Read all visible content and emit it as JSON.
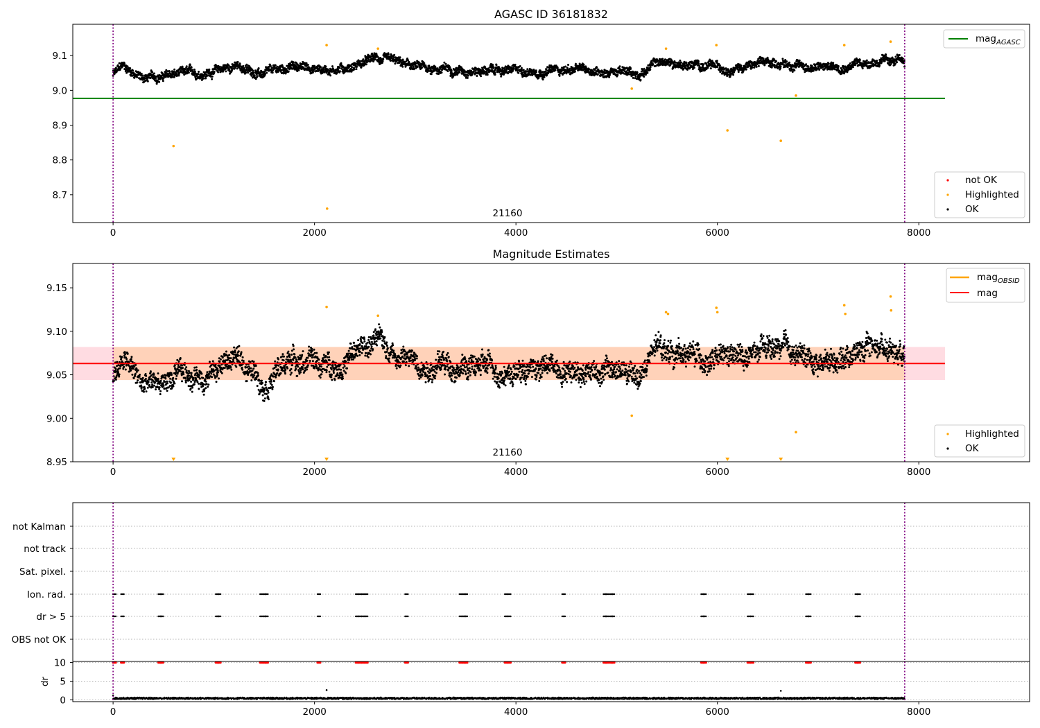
{
  "chart_data": [
    {
      "id": "panel1",
      "type": "scatter",
      "title": "AGASC ID 36181832",
      "annotation": "21160",
      "xlim": [
        -400,
        9100
      ],
      "ylim": [
        8.62,
        9.19
      ],
      "xticks": [
        "0",
        "2000",
        "4000",
        "6000",
        "8000"
      ],
      "xtick_values": [
        0,
        2000,
        4000,
        6000,
        8000
      ],
      "yticks": [
        "8.7",
        "8.8",
        "8.9",
        "9.0",
        "9.1"
      ],
      "ytick_values": [
        8.7,
        8.8,
        8.9,
        9.0,
        9.1
      ],
      "vlines": [
        0,
        7860
      ],
      "legend_top": {
        "position": "top-right",
        "entries": [
          {
            "label": "mag",
            "sub": "AGASC",
            "color": "#008000",
            "kind": "line"
          }
        ]
      },
      "legend_bottom": {
        "position": "bottom-right",
        "entries": [
          {
            "label": "not OK",
            "color": "#ff0000",
            "kind": "dot"
          },
          {
            "label": "Highlighted",
            "color": "#ffa500",
            "kind": "dot"
          },
          {
            "label": "OK",
            "color": "#000000",
            "kind": "dot"
          }
        ]
      },
      "mag_agasc": 8.977,
      "hline_x_range": [
        -400,
        8260
      ],
      "ok_series": {
        "name": "OK",
        "color": "#000000",
        "x_range": [
          0,
          7860
        ],
        "knots_x": [
          0,
          100,
          300,
          600,
          900,
          1200,
          1500,
          1800,
          2100,
          2300,
          2600,
          3000,
          3500,
          4000,
          4500,
          5000,
          5200,
          5400,
          5700,
          6000,
          6300,
          6600,
          7000,
          7300,
          7600,
          7860
        ],
        "knots_y": [
          9.045,
          9.07,
          9.035,
          9.045,
          9.05,
          9.07,
          9.045,
          9.07,
          9.06,
          9.065,
          9.09,
          9.065,
          9.06,
          9.055,
          9.06,
          9.055,
          9.045,
          9.08,
          9.075,
          9.065,
          9.07,
          9.08,
          9.065,
          9.075,
          9.085,
          9.08
        ],
        "noise": 0.02
      },
      "highlighted": {
        "name": "Highlighted",
        "color": "#ffa500",
        "points": [
          [
            600,
            8.84
          ],
          [
            2120,
            9.13
          ],
          [
            2125,
            8.66
          ],
          [
            2630,
            9.12
          ],
          [
            5150,
            9.005
          ],
          [
            5490,
            9.12
          ],
          [
            5990,
            9.13
          ],
          [
            6100,
            8.885
          ],
          [
            6630,
            8.855
          ],
          [
            6780,
            8.985
          ],
          [
            7260,
            9.13
          ],
          [
            7720,
            9.14
          ]
        ]
      }
    },
    {
      "id": "panel2",
      "type": "scatter",
      "title": "Magnitude Estimates",
      "annotation": "21160",
      "xlim": [
        -400,
        9100
      ],
      "ylim": [
        8.95,
        9.178
      ],
      "xticks": [
        "0",
        "2000",
        "4000",
        "6000",
        "8000"
      ],
      "xtick_values": [
        0,
        2000,
        4000,
        6000,
        8000
      ],
      "yticks": [
        "8.95",
        "9.00",
        "9.05",
        "9.10",
        "9.15"
      ],
      "ytick_values": [
        8.95,
        9.0,
        9.05,
        9.1,
        9.15
      ],
      "vlines": [
        0,
        7860
      ],
      "legend_top": {
        "position": "top-right",
        "entries": [
          {
            "label": "mag",
            "sub": "OBSID",
            "color": "#ffa500",
            "kind": "line"
          },
          {
            "label": "mag",
            "sub": "",
            "color": "#ff0000",
            "kind": "line"
          }
        ]
      },
      "legend_bottom": {
        "position": "bottom-right",
        "entries": [
          {
            "label": "Highlighted",
            "color": "#ffa500",
            "kind": "dot"
          },
          {
            "label": "OK",
            "color": "#000000",
            "kind": "dot"
          }
        ]
      },
      "mag": 9.063,
      "mag_band": [
        9.044,
        9.082
      ],
      "band_x_range": [
        -400,
        8260
      ],
      "ok_series": {
        "name": "OK",
        "color": "#000000",
        "x_range": [
          0,
          7860
        ],
        "knots_x": [
          0,
          100,
          300,
          600,
          900,
          1200,
          1500,
          1800,
          2100,
          2300,
          2600,
          3000,
          3500,
          4000,
          4500,
          5000,
          5200,
          5400,
          5700,
          6000,
          6300,
          6600,
          7000,
          7300,
          7600,
          7860
        ],
        "knots_y": [
          9.045,
          9.07,
          9.035,
          9.045,
          9.05,
          9.07,
          9.045,
          9.07,
          9.06,
          9.065,
          9.09,
          9.065,
          9.06,
          9.055,
          9.06,
          9.055,
          9.045,
          9.08,
          9.075,
          9.065,
          9.07,
          9.08,
          9.065,
          9.075,
          9.085,
          9.08
        ],
        "noise": 0.02
      },
      "highlighted": {
        "name": "Highlighted",
        "color": "#ffa500",
        "points": [
          [
            2120,
            9.128
          ],
          [
            2630,
            9.118
          ],
          [
            5150,
            9.003
          ],
          [
            5490,
            9.122
          ],
          [
            5510,
            9.12
          ],
          [
            5990,
            9.127
          ],
          [
            6000,
            9.122
          ],
          [
            6780,
            8.984
          ],
          [
            7260,
            9.13
          ],
          [
            7270,
            9.12
          ],
          [
            7720,
            9.14
          ],
          [
            7725,
            9.124
          ]
        ]
      },
      "below_range_markers": {
        "color": "#ffa500",
        "x": [
          600,
          2120,
          6100,
          6630
        ]
      }
    },
    {
      "id": "panel3",
      "type": "scatter",
      "categories": [
        "not Kalman",
        "not track",
        "Sat. pixel.",
        "Ion. rad.",
        "dr > 5",
        "OBS not OK"
      ],
      "flag_rows": [
        "Ion. rad.",
        "dr > 5"
      ],
      "event_x": [
        0,
        80,
        450,
        470,
        1020,
        1040,
        1460,
        1490,
        1510,
        2030,
        2410,
        2440,
        2470,
        2500,
        2900,
        3440,
        3470,
        3490,
        3890,
        3920,
        4460,
        4870,
        4890,
        4930,
        4950,
        5840,
        5860,
        6300,
        6330,
        6880,
        6900,
        7370,
        7390
      ],
      "xlim": [
        -400,
        9100
      ],
      "vlines": [
        0,
        7860
      ],
      "dr_axis": {
        "ylabel": "dr",
        "ylim": [
          -0.5,
          10.3
        ],
        "yticks": [
          "10",
          "5",
          "0"
        ],
        "ytick_values": [
          10,
          5,
          0
        ],
        "xticks": [
          "0",
          "2000",
          "4000",
          "6000",
          "8000"
        ],
        "xtick_values": [
          0,
          2000,
          4000,
          6000,
          8000
        ],
        "threshold_color": "#ff0000",
        "noise_level": 0.4,
        "outliers": [
          [
            2120,
            2.6
          ],
          [
            6630,
            2.4
          ],
          [
            0,
            1.2
          ]
        ]
      }
    }
  ]
}
